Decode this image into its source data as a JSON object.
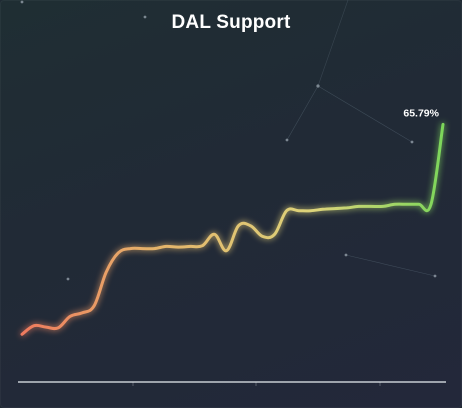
{
  "chart_data": {
    "type": "line",
    "title": "DAL Support",
    "xlabel": "",
    "ylabel": "",
    "ylim": [
      30,
      72
    ],
    "grid": false,
    "legend": "none",
    "end_value_label": "65.79%",
    "x": [
      0,
      1,
      2,
      3,
      4,
      5,
      6,
      7,
      8,
      9,
      10,
      11,
      12,
      13,
      14,
      15,
      16,
      17,
      18,
      19,
      20,
      21,
      22,
      23,
      24,
      25,
      26,
      27,
      28,
      29,
      30,
      31,
      32,
      33,
      34,
      35
    ],
    "values": [
      36.4,
      37.6,
      37.4,
      37.3,
      38.9,
      39.4,
      40.4,
      45.1,
      47.8,
      48.4,
      48.4,
      48.4,
      48.7,
      48.6,
      48.7,
      48.8,
      50.4,
      48.1,
      51.6,
      51.6,
      50.1,
      50.4,
      53.7,
      53.7,
      53.7,
      53.9,
      54.0,
      54.1,
      54.3,
      54.3,
      54.3,
      54.6,
      54.6,
      54.6,
      54.6,
      65.79
    ],
    "gradient_colors": [
      "#ef7a5e",
      "#e5b26a",
      "#dcd47a",
      "#7cd65a"
    ]
  }
}
